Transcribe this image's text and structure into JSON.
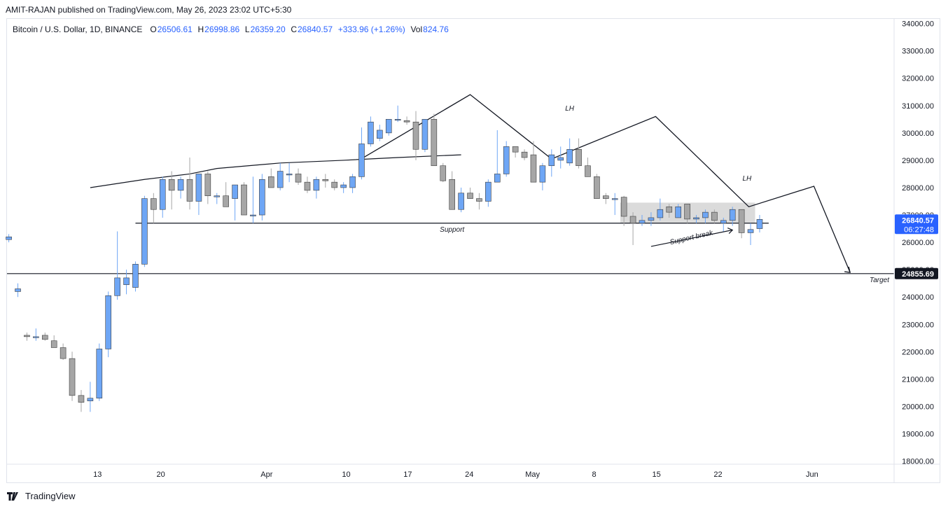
{
  "header": {
    "text": "AMIT-RAJAN published on TradingView.com, May 26, 2023 23:02 UTC+5:30"
  },
  "legend": {
    "symbol": "Bitcoin / U.S. Dollar, 1D, BINANCE",
    "o_label": "O",
    "o_value": "26506.61",
    "h_label": "H",
    "h_value": "26998.86",
    "l_label": "L",
    "l_value": "26359.20",
    "c_label": "C",
    "c_value": "26840.57",
    "change": "+333.96 (+1.26%)",
    "vol_label": "Vol",
    "vol_value": "824.76"
  },
  "price_tag": {
    "price": "26840.57",
    "countdown": "06:27:48"
  },
  "target_tag": {
    "price": "24855.69"
  },
  "annotations": {
    "support": "Support",
    "support_break": "Support break",
    "target": "Target",
    "lh1": "LH",
    "lh2": "LH"
  },
  "footer": {
    "brand": "TradingView"
  },
  "colors": {
    "up": "#6ea6f5",
    "down": "#a6a6a6",
    "accent": "#2962ff",
    "text": "#131722"
  },
  "chart_data": {
    "type": "candlestick",
    "y_ticks": [
      "34000.00",
      "33000.00",
      "32000.00",
      "31000.00",
      "30000.00",
      "29000.00",
      "28000.00",
      "27000.00",
      "26000.00",
      "25000.00",
      "24000.00",
      "23000.00",
      "22000.00",
      "21000.00",
      "20000.00",
      "19000.00",
      "18000.00"
    ],
    "x_ticks": [
      "13",
      "20",
      "Apr",
      "10",
      "17",
      "24",
      "May",
      "8",
      "15",
      "22",
      "Jun"
    ],
    "ylim": [
      17600,
      34300
    ],
    "candles": [
      [
        26100,
        26300,
        26000,
        26200
      ],
      [
        24200,
        24500,
        24000,
        24300
      ],
      [
        22600,
        22700,
        22400,
        22550
      ],
      [
        22550,
        22850,
        22400,
        22550
      ],
      [
        22600,
        22700,
        22400,
        22450
      ],
      [
        22400,
        22600,
        22200,
        22150
      ],
      [
        22150,
        22300,
        21700,
        21750
      ],
      [
        21750,
        22000,
        20200,
        20400
      ],
      [
        20400,
        20600,
        19800,
        20150
      ],
      [
        20200,
        20900,
        19800,
        20300
      ],
      [
        20300,
        22300,
        20200,
        22100
      ],
      [
        22100,
        24200,
        21800,
        24050
      ],
      [
        24050,
        26400,
        23900,
        24700
      ],
      [
        24450,
        25000,
        24100,
        24700
      ],
      [
        24350,
        25300,
        24200,
        25200
      ],
      [
        25200,
        27700,
        25100,
        27600
      ],
      [
        27600,
        27800,
        26700,
        27200
      ],
      [
        27200,
        28400,
        26900,
        28300
      ],
      [
        28300,
        28600,
        27200,
        27900
      ],
      [
        27900,
        28400,
        27600,
        28300
      ],
      [
        28300,
        29100,
        27200,
        27500
      ],
      [
        27500,
        28500,
        27000,
        28500
      ],
      [
        28500,
        28600,
        27400,
        27700
      ],
      [
        27700,
        27800,
        27400,
        27700
      ],
      [
        27700,
        28200,
        27300,
        27300
      ],
      [
        27600,
        28100,
        26800,
        28100
      ],
      [
        28100,
        28200,
        27100,
        27000
      ],
      [
        27000,
        28400,
        26700,
        27000
      ],
      [
        27000,
        28500,
        26800,
        28300
      ],
      [
        28400,
        28700,
        28000,
        28000
      ],
      [
        28000,
        28900,
        27900,
        28600
      ],
      [
        28500,
        28900,
        28200,
        28500
      ],
      [
        28500,
        28700,
        28100,
        28200
      ],
      [
        28200,
        28400,
        27800,
        27900
      ],
      [
        27900,
        28400,
        27600,
        28300
      ],
      [
        28300,
        28500,
        28000,
        28250
      ],
      [
        28200,
        28300,
        27900,
        28000
      ],
      [
        28000,
        28200,
        27800,
        28100
      ],
      [
        28000,
        28500,
        27800,
        28400
      ],
      [
        28400,
        30200,
        28300,
        29600
      ],
      [
        29600,
        30600,
        29500,
        30400
      ],
      [
        29800,
        30300,
        29700,
        30100
      ],
      [
        30000,
        30500,
        29900,
        30500
      ],
      [
        30500,
        31000,
        30400,
        30500
      ],
      [
        30450,
        30600,
        30300,
        30400
      ],
      [
        30400,
        30800,
        29000,
        29400
      ],
      [
        29400,
        30500,
        29300,
        30500
      ],
      [
        30500,
        30700,
        28800,
        28800
      ],
      [
        28800,
        28900,
        28200,
        28250
      ],
      [
        28300,
        28600,
        27200,
        27200
      ],
      [
        27200,
        28000,
        27100,
        27800
      ],
      [
        27800,
        28000,
        27600,
        27600
      ],
      [
        27600,
        27800,
        27200,
        27500
      ],
      [
        27500,
        28300,
        27300,
        28200
      ],
      [
        28200,
        30100,
        28200,
        28500
      ],
      [
        28500,
        29700,
        28400,
        29500
      ],
      [
        29500,
        29500,
        29100,
        29300
      ],
      [
        29300,
        29400,
        29000,
        29100
      ],
      [
        29200,
        29700,
        28200,
        28200
      ],
      [
        28200,
        28900,
        27900,
        28800
      ],
      [
        28800,
        29400,
        28400,
        29200
      ],
      [
        29000,
        29500,
        28700,
        29100
      ],
      [
        28900,
        29800,
        28800,
        29400
      ],
      [
        29400,
        29800,
        28700,
        28800
      ],
      [
        28800,
        29100,
        28400,
        28400
      ],
      [
        28400,
        28500,
        27700,
        27600
      ],
      [
        27700,
        27800,
        27400,
        27600
      ],
      [
        27600,
        27800,
        27000,
        27600
      ],
      [
        27650,
        27700,
        26600,
        26950
      ],
      [
        26950,
        27100,
        25900,
        26700
      ],
      [
        26700,
        27000,
        26600,
        26800
      ],
      [
        26800,
        27100,
        26600,
        26900
      ],
      [
        26900,
        27600,
        26800,
        27200
      ],
      [
        27300,
        27400,
        26900,
        27100
      ],
      [
        26900,
        27400,
        26900,
        27300
      ],
      [
        27400,
        27300,
        26700,
        26850
      ],
      [
        26850,
        27000,
        26700,
        26900
      ],
      [
        26900,
        27200,
        26700,
        27100
      ],
      [
        27100,
        27200,
        26700,
        26800
      ],
      [
        26700,
        26900,
        26400,
        26800
      ],
      [
        26800,
        27300,
        26600,
        27200
      ],
      [
        27200,
        27200,
        26150,
        26350
      ],
      [
        26350,
        26700,
        25900,
        26470
      ],
      [
        26500,
        27000,
        26360,
        26840
      ]
    ],
    "lines": {
      "resistance": [
        [
          -1,
          28000
        ],
        [
          5,
          28300
        ],
        [
          10,
          28500
        ],
        [
          13,
          28700
        ],
        [
          20,
          28900
        ],
        [
          27,
          29000
        ],
        [
          33,
          29100
        ],
        [
          40,
          29200
        ]
      ],
      "support_level": 26700,
      "target_level": 24855.69,
      "pattern_path": [
        [
          39.2,
          29100
        ],
        [
          51,
          31400
        ],
        [
          60,
          29050
        ],
        [
          71.5,
          30600
        ],
        [
          81.8,
          27300
        ],
        [
          89,
          28050
        ],
        [
          93,
          24900
        ]
      ]
    }
  }
}
